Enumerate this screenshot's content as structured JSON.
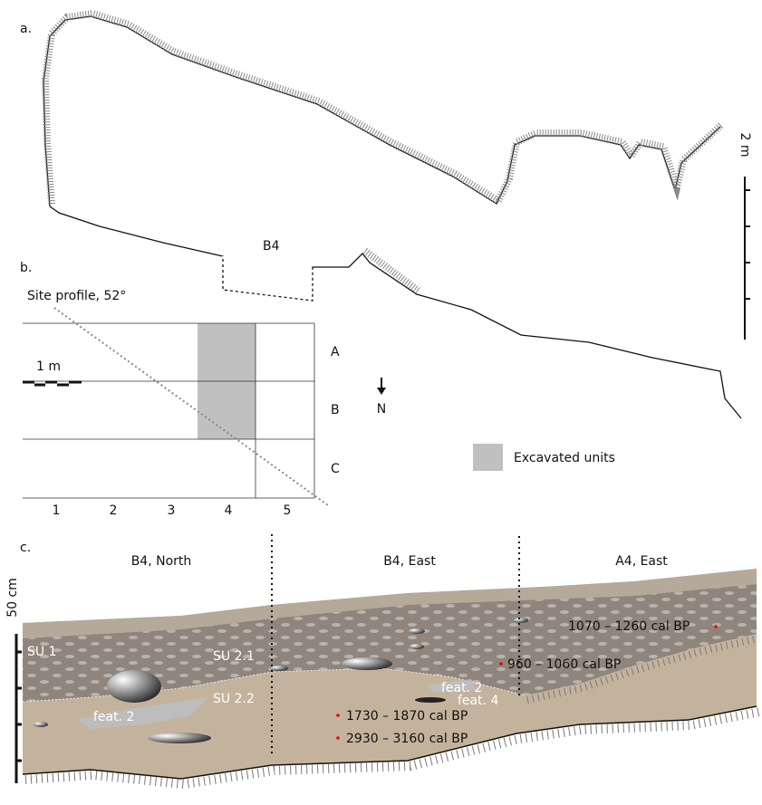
{
  "panel_a": {
    "label": "a.",
    "scale": "2 m",
    "unit": "B4"
  },
  "panel_b": {
    "label": "b.",
    "profile": "Site profile, 52°",
    "rows": [
      "A",
      "B",
      "C"
    ],
    "columns": [
      1,
      2,
      3,
      4,
      5
    ],
    "scale": "1 m",
    "north": "N",
    "legend": "Excavated units"
  },
  "panel_c": {
    "label": "c.",
    "sections": [
      "B4, North",
      "B4, East",
      "A4, East"
    ],
    "scale": "50 cm",
    "units": [
      "SU 1",
      "SU 2.1",
      "SU 2.2"
    ],
    "features": [
      "feat. 2",
      "feat. 2",
      "feat. 4"
    ],
    "dates": [
      "1070 – 1260 cal BP",
      "960 – 1060 cal BP",
      "1730 – 1870 cal BP",
      "2930 – 3160 cal BP"
    ]
  }
}
